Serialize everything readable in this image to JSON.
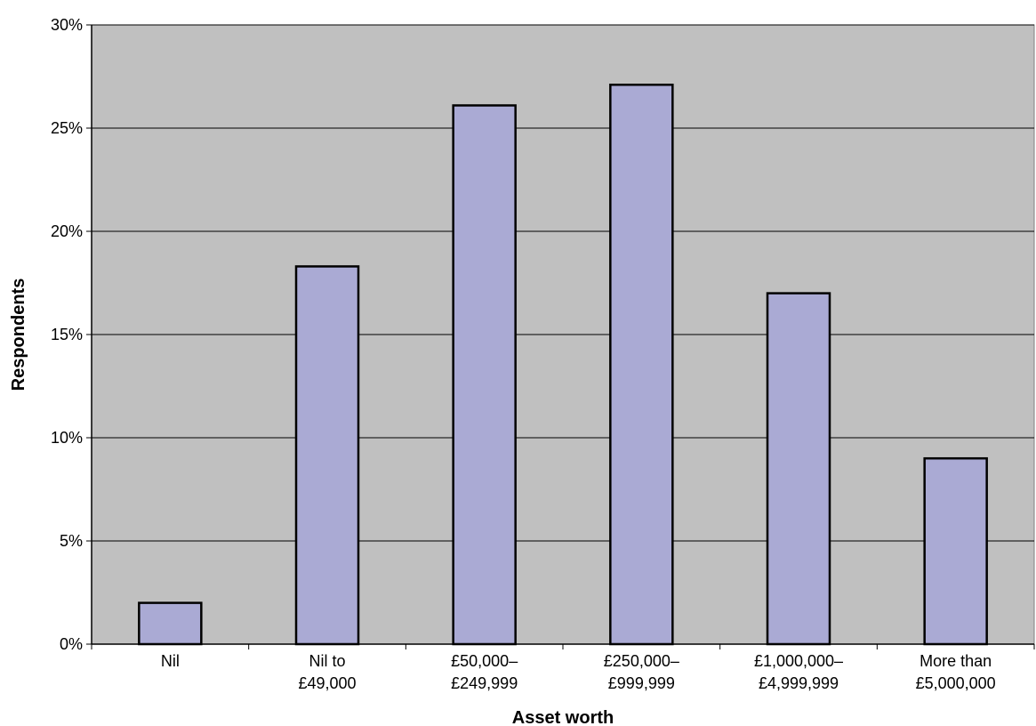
{
  "chart_data": {
    "type": "bar",
    "title": "",
    "xlabel": "Asset worth",
    "ylabel": "Respondents",
    "categories": [
      [
        "Nil"
      ],
      [
        "Nil to",
        "£49,000"
      ],
      [
        "£50,000–",
        "£249,999"
      ],
      [
        "£250,000–",
        "£999,999"
      ],
      [
        "£1,000,000–",
        "£4,999,999"
      ],
      [
        "More than",
        "£5,000,000"
      ]
    ],
    "values": [
      2.0,
      18.3,
      26.1,
      27.1,
      17.0,
      9.0
    ],
    "ylim": [
      0,
      30
    ],
    "yticks": [
      0,
      5,
      10,
      15,
      20,
      25,
      30
    ],
    "ytick_labels": [
      "0%",
      "5%",
      "10%",
      "15%",
      "20%",
      "25%",
      "30%"
    ],
    "grid": true,
    "colors": {
      "plot_background": "#c0c0c0",
      "bar_fill": "#aaaad4",
      "bar_stroke": "#000000",
      "gridline": "#000000"
    }
  }
}
